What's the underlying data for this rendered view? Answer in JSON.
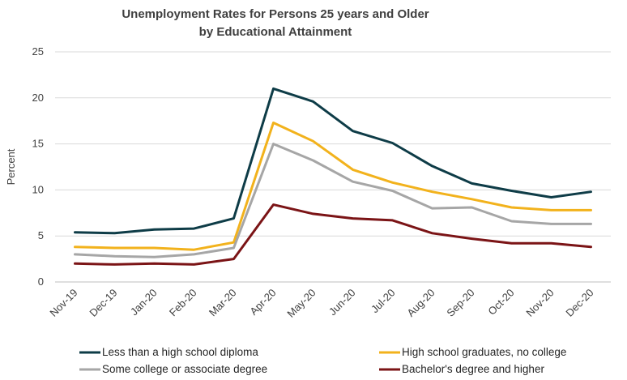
{
  "chart_data": {
    "type": "line",
    "title": "Unemployment Rates for Persons 25 years and Older",
    "subtitle": "by Educational Attainment",
    "xlabel": "",
    "ylabel": "Percent",
    "ylim": [
      0,
      25
    ],
    "yticks": [
      "0",
      "5",
      "10",
      "15",
      "20",
      "25"
    ],
    "grid": true,
    "legend_position": "bottom",
    "categories": [
      "Nov-19",
      "Dec-19",
      "Jan-20",
      "Feb-20",
      "Mar-20",
      "Apr-20",
      "May-20",
      "Jun-20",
      "Jul-20",
      "Aug-20",
      "Sep-20",
      "Oct-20",
      "Nov-20",
      "Dec-20"
    ],
    "series": [
      {
        "name": "Less than a high school diploma",
        "color": "#0e3c47",
        "values": [
          5.4,
          5.3,
          5.7,
          5.8,
          6.9,
          21.0,
          19.6,
          16.4,
          15.1,
          12.6,
          10.7,
          9.9,
          9.2,
          9.8
        ]
      },
      {
        "name": "High school graduates, no college",
        "color": "#f2b21c",
        "values": [
          3.8,
          3.7,
          3.7,
          3.5,
          4.3,
          17.3,
          15.3,
          12.2,
          10.8,
          9.8,
          9.0,
          8.1,
          7.8,
          7.8
        ]
      },
      {
        "name": "Some college or associate degree",
        "color": "#a6a6a6",
        "values": [
          3.0,
          2.8,
          2.7,
          3.0,
          3.7,
          15.0,
          13.2,
          10.9,
          9.9,
          8.0,
          8.1,
          6.6,
          6.3,
          6.3
        ]
      },
      {
        "name": "Bachelor's degree and higher",
        "color": "#7b1416",
        "values": [
          2.0,
          1.9,
          2.0,
          1.9,
          2.5,
          8.4,
          7.4,
          6.9,
          6.7,
          5.3,
          4.7,
          4.2,
          4.2,
          3.8
        ]
      }
    ]
  }
}
